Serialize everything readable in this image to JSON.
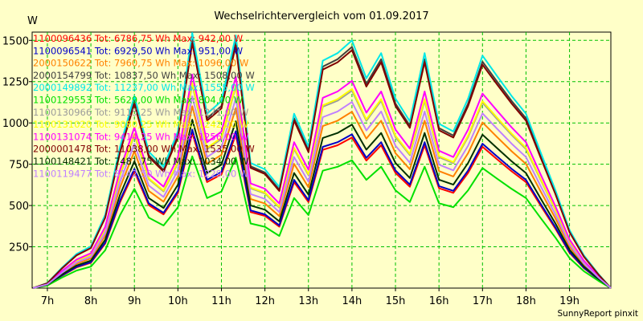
{
  "chart_data": {
    "type": "line",
    "title": "Wechselrichtervergleich vom 01.09.2017",
    "ylabel": "W",
    "footer": "SunnyReport pinxit",
    "ylim": [
      0,
      1550
    ],
    "xlim": [
      6.65,
      19.95
    ],
    "y_ticks": [
      250,
      500,
      750,
      1000,
      1250,
      1500
    ],
    "x_ticks": [
      {
        "value": 7,
        "label": "7h"
      },
      {
        "value": 8,
        "label": "8h"
      },
      {
        "value": 9,
        "label": "9h"
      },
      {
        "value": 10,
        "label": "10h"
      },
      {
        "value": 11,
        "label": "11h"
      },
      {
        "value": 12,
        "label": "12h"
      },
      {
        "value": 13,
        "label": "13h"
      },
      {
        "value": 14,
        "label": "14h"
      },
      {
        "value": 15,
        "label": "15h"
      },
      {
        "value": 16,
        "label": "16h"
      },
      {
        "value": 17,
        "label": "17h"
      },
      {
        "value": 18,
        "label": "18h"
      },
      {
        "value": 19,
        "label": "19h"
      }
    ],
    "grid": true,
    "legend_position": "top-left",
    "x": [
      6.67,
      7.0,
      7.33,
      7.67,
      8.0,
      8.33,
      8.67,
      9.0,
      9.33,
      9.67,
      10.0,
      10.33,
      10.67,
      11.0,
      11.33,
      11.67,
      12.0,
      12.33,
      12.67,
      13.0,
      13.33,
      13.67,
      14.0,
      14.33,
      14.67,
      15.0,
      15.33,
      15.67,
      16.0,
      16.33,
      16.67,
      17.0,
      17.33,
      17.67,
      18.0,
      18.33,
      18.67,
      19.0,
      19.33,
      19.67,
      19.95
    ],
    "base_profile": [
      0,
      20,
      80,
      135,
      165,
      290,
      560,
      760,
      540,
      480,
      620,
      1010,
      690,
      740,
      1000,
      495,
      470,
      400,
      690,
      560,
      900,
      930,
      980,
      830,
      930,
      750,
      660,
      930,
      650,
      620,
      750,
      920,
      840,
      760,
      690,
      540,
      390,
      230,
      130,
      55,
      0
    ],
    "series": [
      {
        "name": "1100096436 Tot: 6786,75 Wh Max: 942,00 W",
        "color": "#ff0000",
        "scale": 0.93
      },
      {
        "name": "1100096541 Tot: 6929,50 Wh Max: 951,00 W",
        "color": "#0000c8",
        "scale": 0.95
      },
      {
        "name": "2000150622 Tot: 7960,75 Wh Max: 1096,00 W",
        "color": "#ff8000",
        "scale": 1.09
      },
      {
        "name": "2000154799 Tot: 10837,50 Wh Max: 1508,00 W",
        "color": "#404040",
        "scale": 1.49
      },
      {
        "name": "2000149892 Tot: 11237,00 Wh Max: 1555,00 W",
        "color": "#00e8e8",
        "scale": 1.53
      },
      {
        "name": "1100129553 Tot: 5629,00 Wh Max: 804,00 W",
        "color": "#00e000",
        "scale": 0.79
      },
      {
        "name": "1100130966 Tot: 9115,25 Wh Max: 1271,00 W",
        "color": "#9b9b9b",
        "scale": 1.22
      },
      {
        "name": "1100131020 Tot: 9080,25 Wh Max: 1242,00 W",
        "color": "#ffff00",
        "scale": 1.23
      },
      {
        "name": "1100131074 Tot: 9414,25 Wh Max: 1256,00 W",
        "color": "#ff00ff",
        "scale": 1.28
      },
      {
        "name": "2000001478 Tot: 11038,00 Wh Max: 1535,00 W",
        "color": "#800000",
        "scale": 1.47
      },
      {
        "name": "1100148421 Tot: 7481,75 Wh Max: 1034,00 W",
        "color": "#003000",
        "scale": 1.01
      },
      {
        "name": "1100119477 Tot: 8142,50 Wh Max: 1229,00 W",
        "color": "#c080ff",
        "scale": 1.15
      }
    ]
  }
}
